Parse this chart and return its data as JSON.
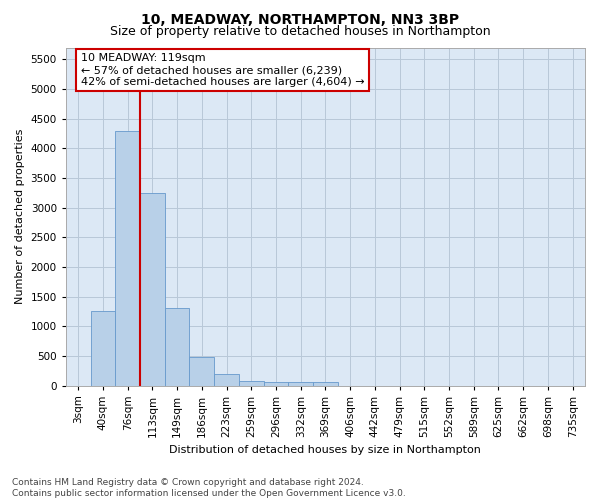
{
  "title": "10, MEADWAY, NORTHAMPTON, NN3 3BP",
  "subtitle": "Size of property relative to detached houses in Northampton",
  "xlabel": "Distribution of detached houses by size in Northampton",
  "ylabel": "Number of detached properties",
  "categories": [
    "3sqm",
    "40sqm",
    "76sqm",
    "113sqm",
    "149sqm",
    "186sqm",
    "223sqm",
    "259sqm",
    "296sqm",
    "332sqm",
    "369sqm",
    "406sqm",
    "442sqm",
    "479sqm",
    "515sqm",
    "552sqm",
    "589sqm",
    "625sqm",
    "662sqm",
    "698sqm",
    "735sqm"
  ],
  "values": [
    0,
    1250,
    4300,
    3250,
    1300,
    480,
    200,
    80,
    55,
    55,
    55,
    0,
    0,
    0,
    0,
    0,
    0,
    0,
    0,
    0,
    0
  ],
  "bar_color": "#b8d0e8",
  "bar_edge_color": "#6699cc",
  "vline_x_index": 3,
  "vline_color": "#cc0000",
  "annotation_text": "10 MEADWAY: 119sqm\n← 57% of detached houses are smaller (6,239)\n42% of semi-detached houses are larger (4,604) →",
  "annotation_box_color": "#ffffff",
  "annotation_box_edge_color": "#cc0000",
  "ylim": [
    0,
    5700
  ],
  "yticks": [
    0,
    500,
    1000,
    1500,
    2000,
    2500,
    3000,
    3500,
    4000,
    4500,
    5000,
    5500
  ],
  "footer_line1": "Contains HM Land Registry data © Crown copyright and database right 2024.",
  "footer_line2": "Contains public sector information licensed under the Open Government Licence v3.0.",
  "background_color": "#ffffff",
  "plot_bg_color": "#dce8f5",
  "grid_color": "#b8c8d8",
  "title_fontsize": 10,
  "subtitle_fontsize": 9,
  "axis_label_fontsize": 8,
  "tick_fontsize": 7.5,
  "annotation_fontsize": 8,
  "footer_fontsize": 6.5
}
